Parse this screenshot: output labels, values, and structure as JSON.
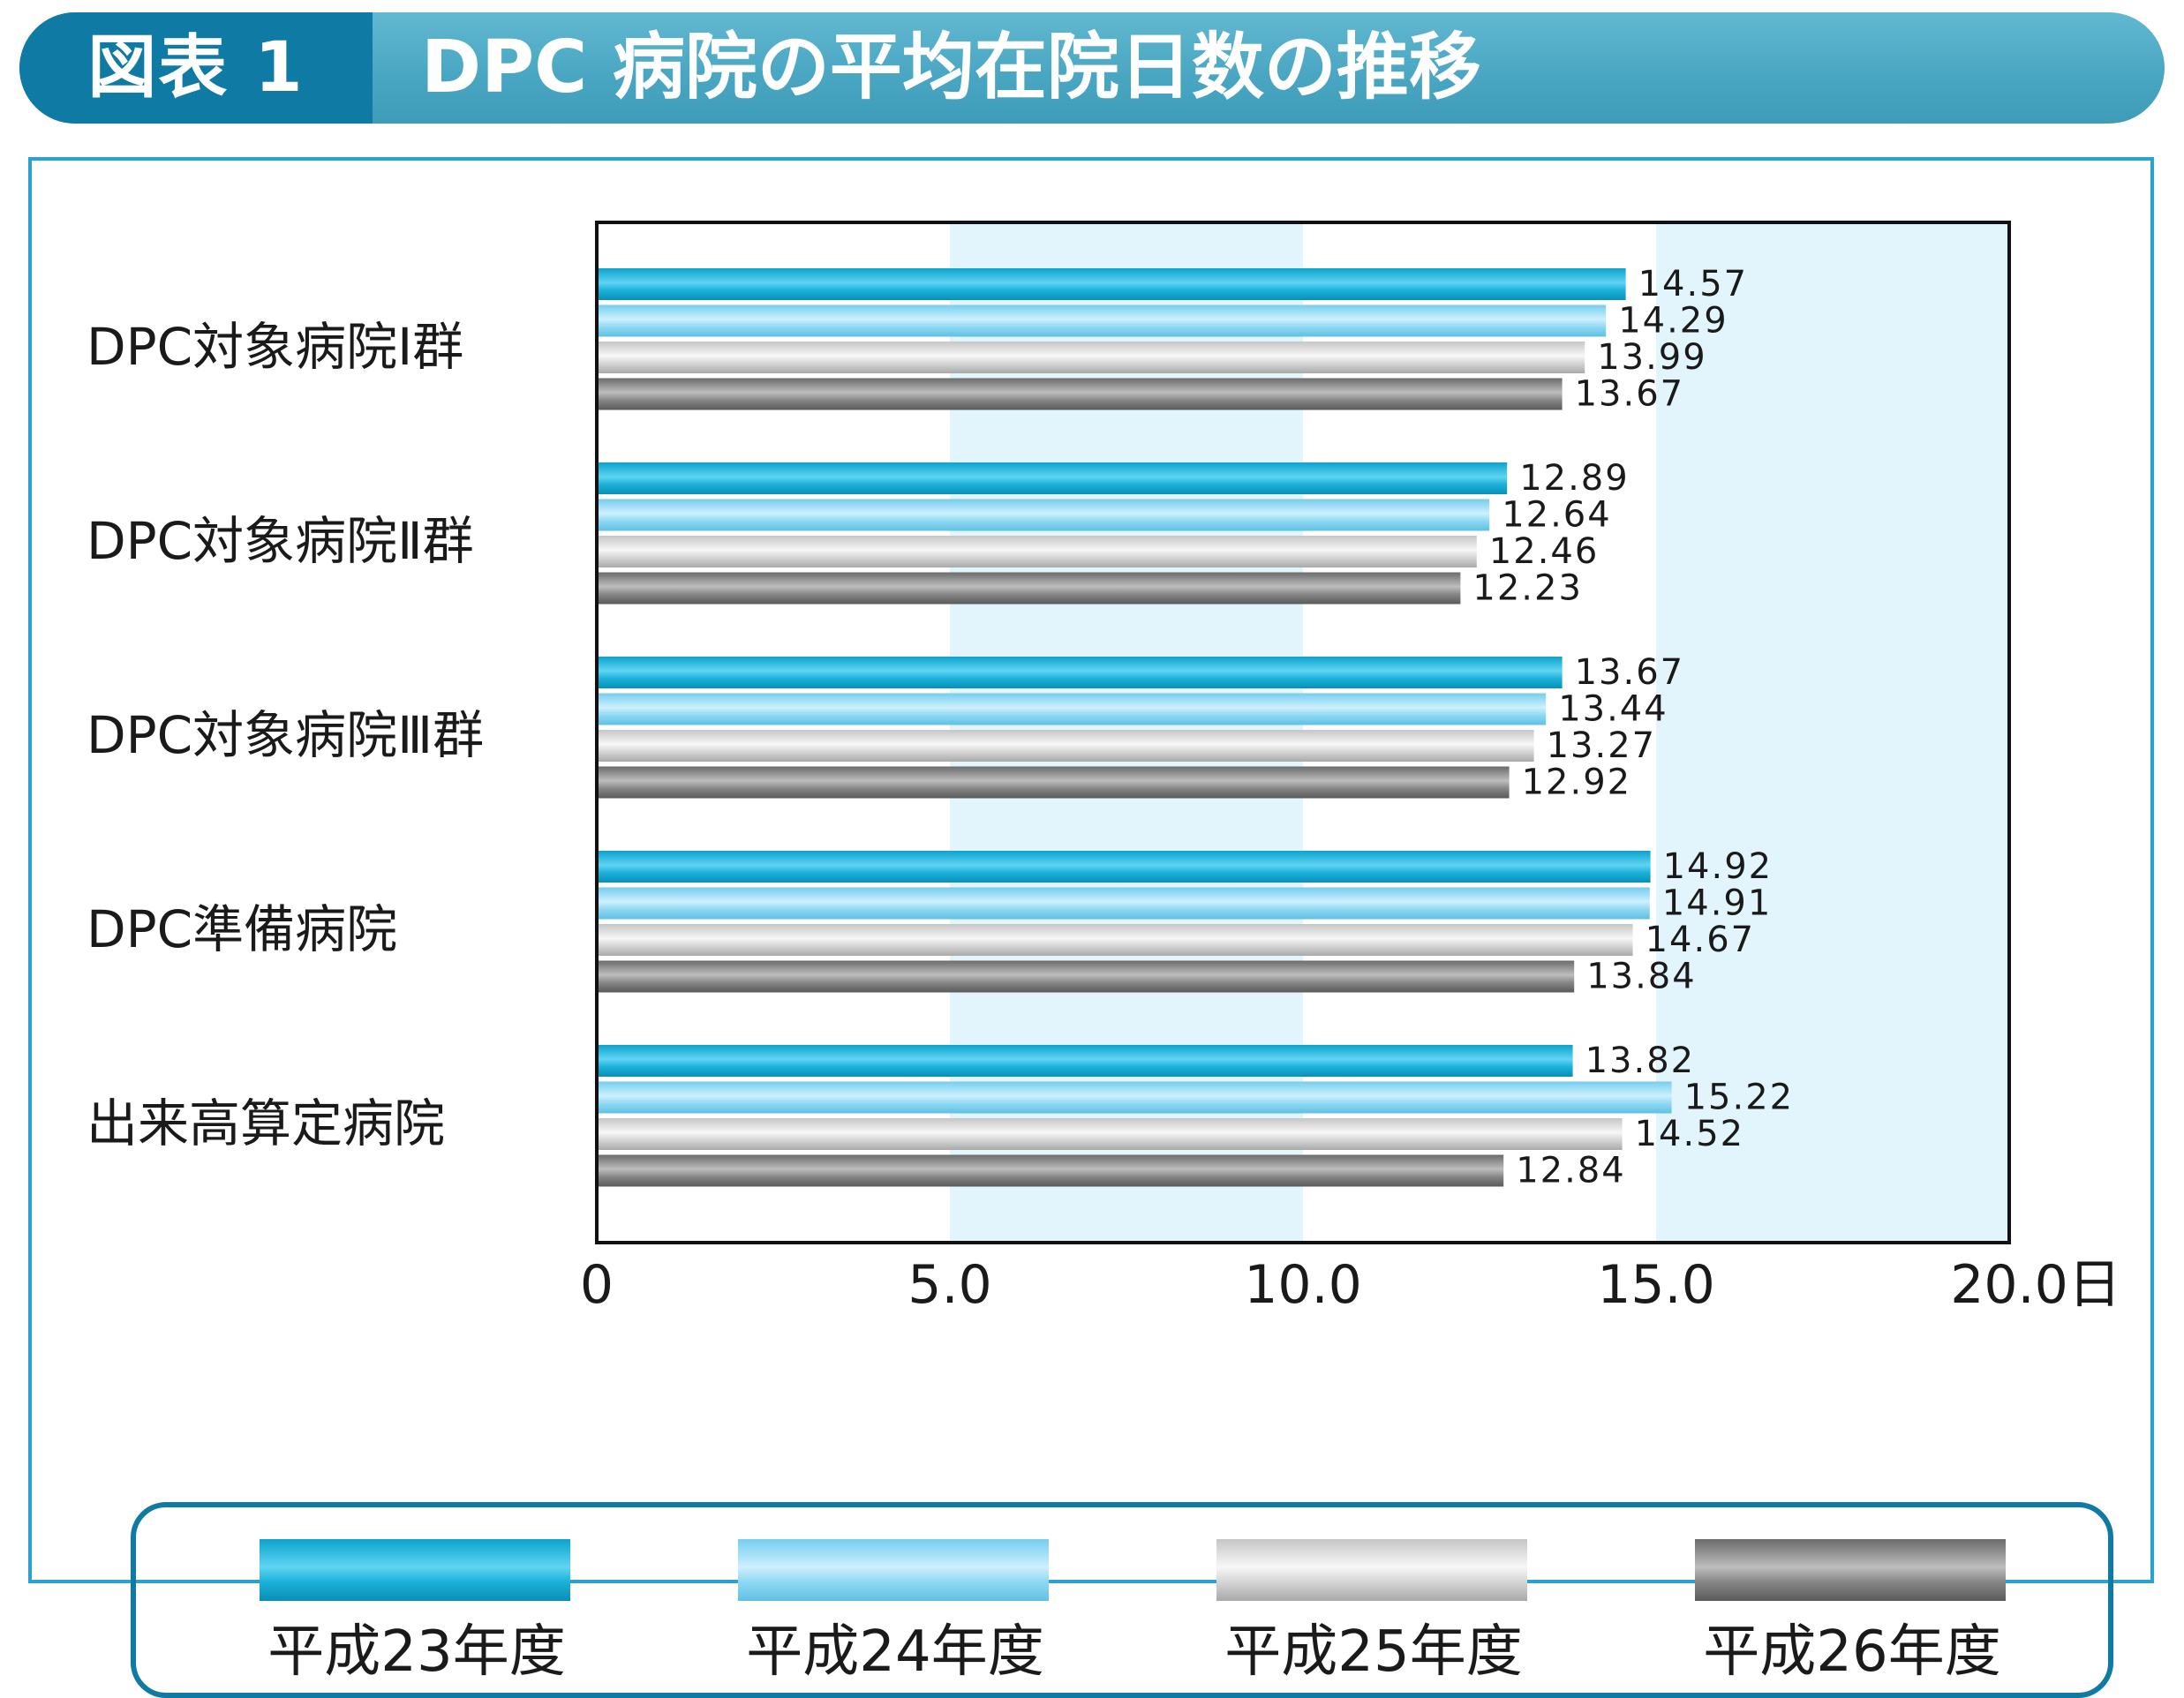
{
  "header": {
    "label": "図表 1",
    "title": "DPC 病院の平均在院日数の推移"
  },
  "chart_data": {
    "type": "bar",
    "orientation": "horizontal",
    "categories": [
      "DPC対象病院Ⅰ群",
      "DPC対象病院Ⅱ群",
      "DPC対象病院Ⅲ群",
      "DPC準備病院",
      "出来高算定病院"
    ],
    "series": [
      {
        "name": "平成23年度",
        "values": [
          14.57,
          12.89,
          13.67,
          14.92,
          13.82
        ]
      },
      {
        "name": "平成24年度",
        "values": [
          14.29,
          12.64,
          13.44,
          14.91,
          15.22
        ]
      },
      {
        "name": "平成25年度",
        "values": [
          13.99,
          12.46,
          13.27,
          14.67,
          14.52
        ]
      },
      {
        "name": "平成26年度",
        "values": [
          13.67,
          12.23,
          12.92,
          13.84,
          12.84
        ]
      }
    ],
    "x_ticks": [
      "0",
      "5.0",
      "10.0",
      "15.0",
      "20.0日"
    ],
    "xlim": [
      0,
      20
    ],
    "grid": false,
    "legend_position": "bottom",
    "band_color": "#e2f4fc",
    "series_colors": [
      "#1ab0d8",
      "#8ed8f2",
      "#d4d4d4",
      "#858585"
    ]
  }
}
